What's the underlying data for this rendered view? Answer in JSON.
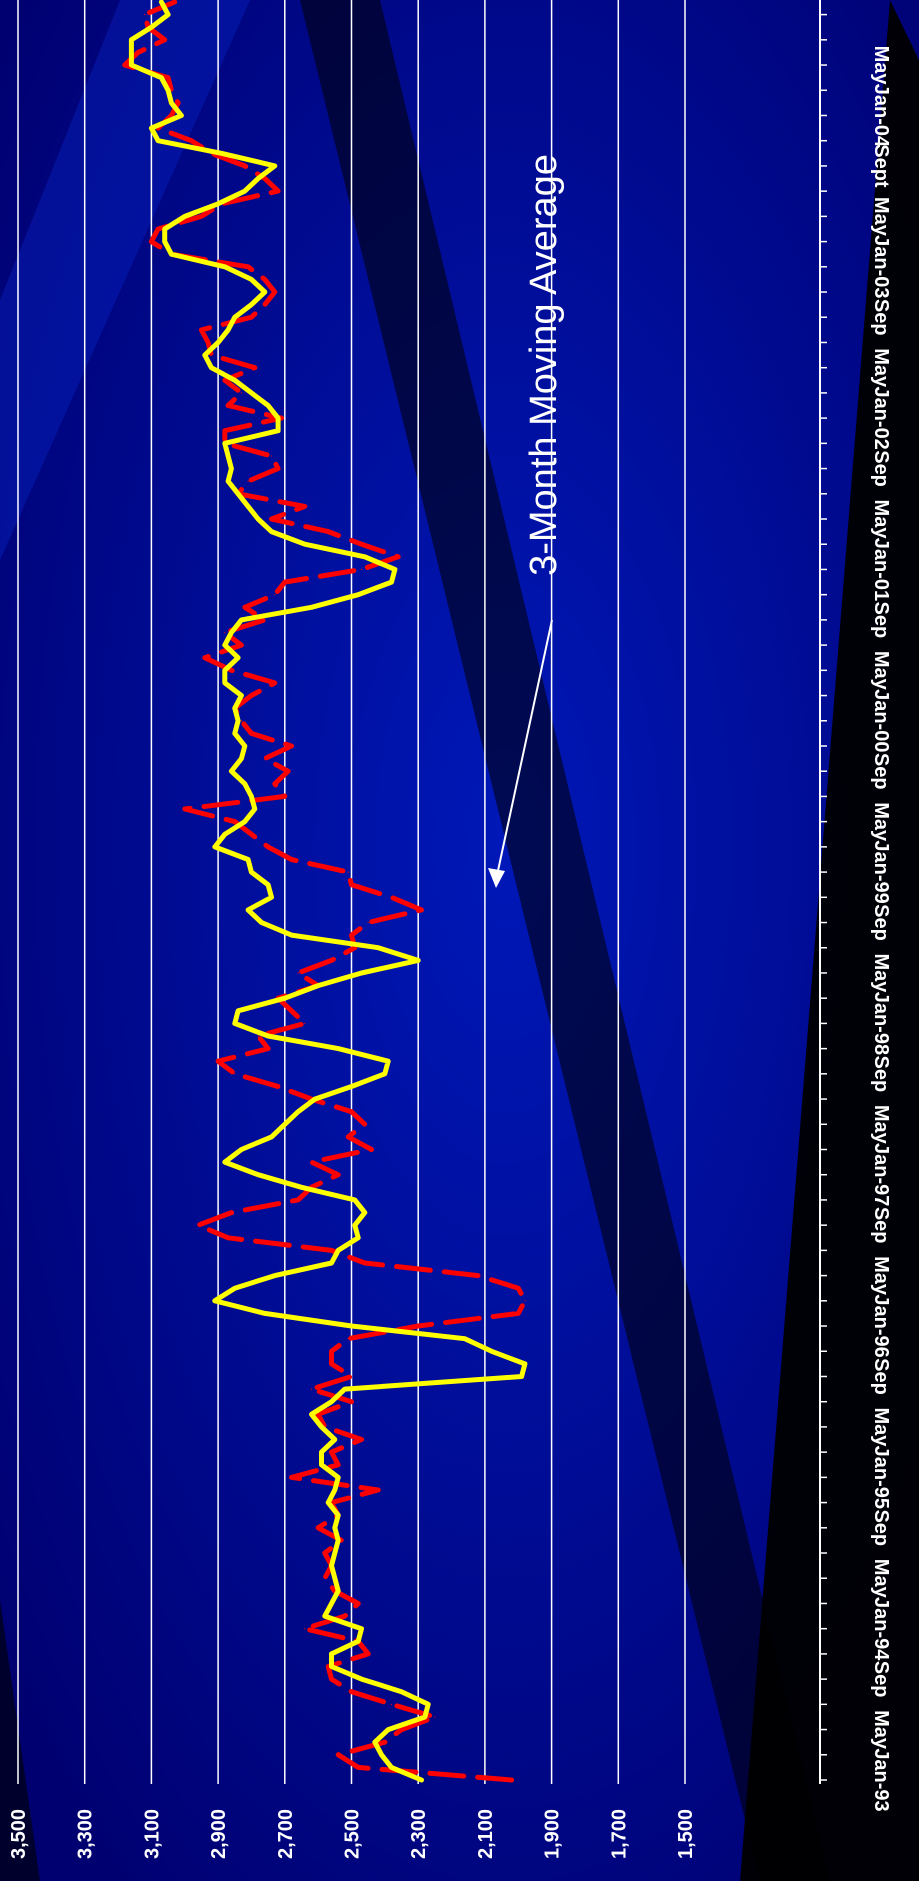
{
  "chart_data": {
    "type": "line",
    "title": "",
    "xlabel": "",
    "ylabel": "",
    "ylim": [
      1500,
      3500
    ],
    "grid": "horizontal",
    "orientation": "rotated 90 degrees clockwise (y-axis along bottom, time axis along right)",
    "y_ticks": [
      "1,500",
      "1,700",
      "1,900",
      "2,100",
      "2,300",
      "2,500",
      "2,700",
      "2,900",
      "3,100",
      "3,300",
      "3,500"
    ],
    "x_tick_labels": [
      {
        "label": "Jan-93",
        "month": 0
      },
      {
        "label": "May",
        "month": 4
      },
      {
        "label": "Sep",
        "month": 8
      },
      {
        "label": "Jan-94",
        "month": 12
      },
      {
        "label": "May",
        "month": 16
      },
      {
        "label": "Sep",
        "month": 20
      },
      {
        "label": "Jan-95",
        "month": 24
      },
      {
        "label": "May",
        "month": 28
      },
      {
        "label": "Sep",
        "month": 32
      },
      {
        "label": "Jan-96",
        "month": 36
      },
      {
        "label": "May",
        "month": 40
      },
      {
        "label": "Sep",
        "month": 44
      },
      {
        "label": "Jan-97",
        "month": 48
      },
      {
        "label": "May",
        "month": 52
      },
      {
        "label": "Sep",
        "month": 56
      },
      {
        "label": "Jan-98",
        "month": 60
      },
      {
        "label": "May",
        "month": 64
      },
      {
        "label": "Sep",
        "month": 68
      },
      {
        "label": "Jan-99",
        "month": 72
      },
      {
        "label": "May",
        "month": 76
      },
      {
        "label": "Sep",
        "month": 80
      },
      {
        "label": "Jan-00",
        "month": 84
      },
      {
        "label": "May",
        "month": 88
      },
      {
        "label": "Sep",
        "month": 92
      },
      {
        "label": "Jan-01",
        "month": 96
      },
      {
        "label": "May",
        "month": 100
      },
      {
        "label": "Sep",
        "month": 104
      },
      {
        "label": "Jan-02",
        "month": 108
      },
      {
        "label": "May",
        "month": 112
      },
      {
        "label": "Sep",
        "month": 116
      },
      {
        "label": "Jan-03",
        "month": 120
      },
      {
        "label": "May",
        "month": 124
      },
      {
        "label": "Sept",
        "month": 128
      },
      {
        "label": "Jan-04",
        "month": 132
      },
      {
        "label": "May",
        "month": 136
      }
    ],
    "series": [
      {
        "style": "dashed",
        "color": "#ff0000",
        "x_start_label": "Jan-93",
        "values": [
          2020,
          2480,
          2540,
          2400,
          2350,
          2250,
          2380,
          2500,
          2560,
          2570,
          2450,
          2480,
          2640,
          2520,
          2480,
          2550,
          2580,
          2560,
          2580,
          2530,
          2600,
          2540,
          2560,
          2420,
          2680,
          2540,
          2560,
          2470,
          2580,
          2600,
          2500,
          2620,
          2500,
          2560,
          2560,
          2510,
          2300,
          2000,
          1980,
          2000,
          2120,
          2460,
          2560,
          2870,
          2960,
          2860,
          2660,
          2620,
          2540,
          2620,
          2440,
          2510,
          2460,
          2500,
          2620,
          2720,
          2850,
          2900,
          2750,
          2780,
          2640,
          2680,
          2720,
          2600,
          2660,
          2560,
          2490,
          2500,
          2450,
          2290,
          2380,
          2500,
          2510,
          2680,
          2750,
          2800,
          2850,
          3000,
          2700,
          2730,
          2690,
          2760,
          2680,
          2800,
          2830,
          2850,
          2800,
          2730,
          2860,
          2940,
          2830,
          2880,
          2760,
          2820,
          2730,
          2700,
          2470,
          2360,
          2470,
          2570,
          2740,
          2640,
          2840,
          2810,
          2720,
          2740,
          2880,
          2880,
          2710,
          2870,
          2830,
          2880,
          2790,
          2920,
          2930,
          2950,
          2800,
          2760,
          2730,
          2760,
          2810,
          3040,
          3100,
          3080,
          2950,
          2890,
          2720,
          2760,
          2820,
          2920,
          2980,
          3080,
          3040,
          3020,
          3040,
          3050,
          3180,
          3140,
          3060,
          3110,
          3120,
          3030
        ]
      },
      {
        "name": "3-Month Moving Average",
        "style": "solid",
        "color": "#ffff00",
        "x_start_label": "Jan-93",
        "values": [
          2290,
          2380,
          2410,
          2430,
          2390,
          2280,
          2270,
          2350,
          2470,
          2560,
          2560,
          2480,
          2470,
          2580,
          2560,
          2540,
          2550,
          2560,
          2550,
          2540,
          2550,
          2540,
          2570,
          2550,
          2540,
          2590,
          2590,
          2550,
          2590,
          2620,
          2560,
          2520,
          1990,
          1980,
          2080,
          2160,
          2500,
          2760,
          2910,
          2850,
          2730,
          2560,
          2540,
          2480,
          2490,
          2460,
          2490,
          2650,
          2780,
          2880,
          2830,
          2740,
          2700,
          2660,
          2610,
          2500,
          2400,
          2390,
          2540,
          2750,
          2850,
          2840,
          2700,
          2600,
          2470,
          2300,
          2420,
          2680,
          2770,
          2810,
          2740,
          2750,
          2800,
          2810,
          2910,
          2880,
          2820,
          2790,
          2800,
          2820,
          2860,
          2830,
          2820,
          2850,
          2840,
          2850,
          2830,
          2880,
          2880,
          2840,
          2880,
          2860,
          2830,
          2620,
          2480,
          2380,
          2370,
          2460,
          2640,
          2740,
          2780,
          2810,
          2840,
          2870,
          2860,
          2870,
          2880,
          2720,
          2720,
          2750,
          2800,
          2850,
          2920,
          2940,
          2900,
          2870,
          2850,
          2800,
          2760,
          2800,
          2880,
          3040,
          3060,
          3060,
          3000,
          2900,
          2820,
          2780,
          2730,
          2890,
          3080,
          3100,
          3010,
          3040,
          3050,
          3070,
          3160,
          3160,
          3160,
          3100,
          3050,
          3070
        ]
      }
    ],
    "annotations": [
      {
        "text": "3-Month Moving Average",
        "points_to_series": "3-Month Moving Average"
      }
    ]
  }
}
